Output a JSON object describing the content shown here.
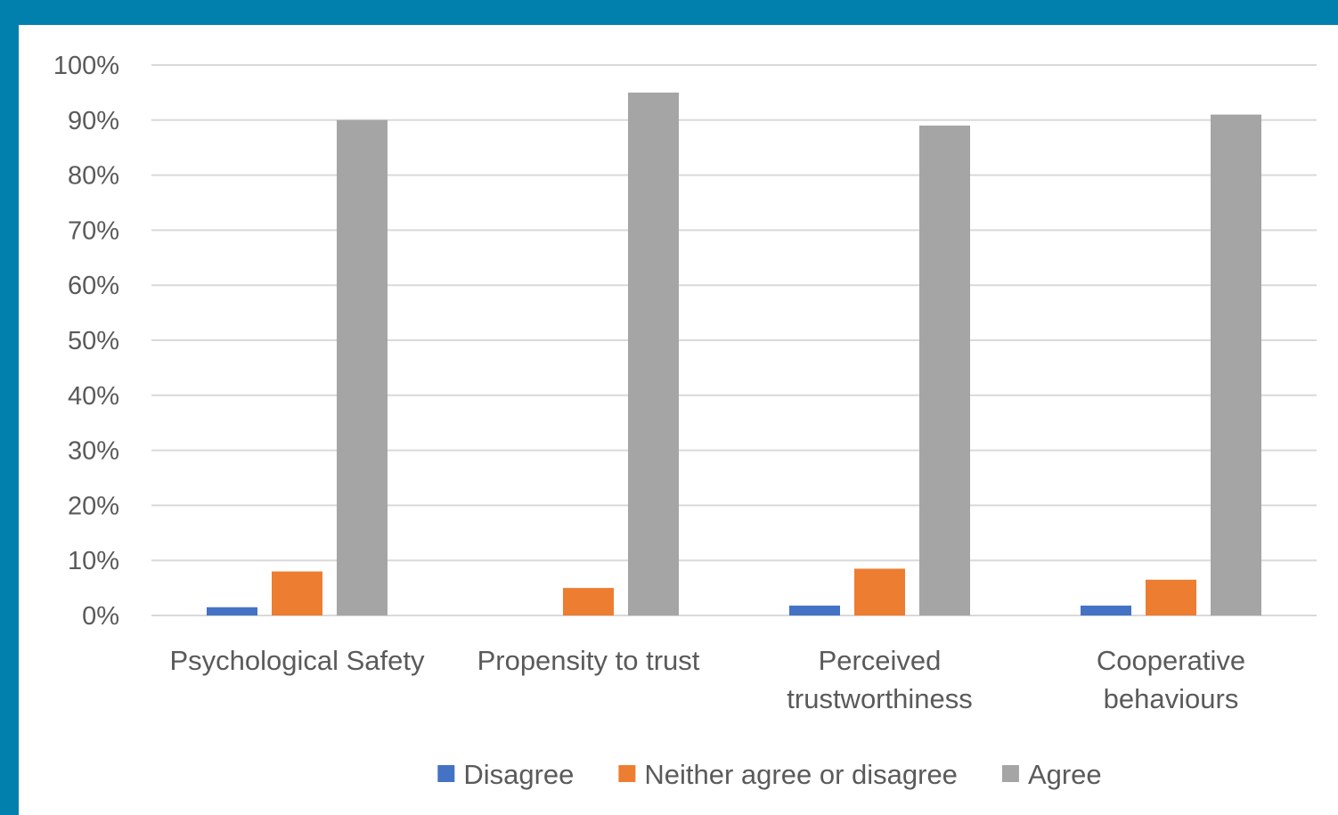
{
  "colors": {
    "frame": "#0280ad",
    "panel": "#ffffff",
    "gridline": "#d9d9d9",
    "text": "#5a5a5a"
  },
  "chart_data": {
    "type": "bar",
    "title": "",
    "xlabel": "",
    "ylabel": "",
    "categories": [
      [
        "Psychological Safety"
      ],
      [
        "Propensity to trust"
      ],
      [
        "Perceived",
        "trustworthiness"
      ],
      [
        "Cooperative",
        "behaviours"
      ]
    ],
    "series": [
      {
        "name": "Disagree",
        "color": "#4472c4",
        "values": [
          1.5,
          0,
          1.8,
          1.8
        ]
      },
      {
        "name": "Neither agree or disagree",
        "color": "#ed7d31",
        "values": [
          8,
          5,
          8.5,
          6.5
        ]
      },
      {
        "name": "Agree",
        "color": "#a5a5a5",
        "values": [
          90,
          95,
          89,
          91
        ]
      }
    ],
    "yticks": [
      "0%",
      "10%",
      "20%",
      "30%",
      "40%",
      "50%",
      "60%",
      "70%",
      "80%",
      "90%",
      "100%"
    ],
    "ylim": [
      0,
      100
    ],
    "grid": true,
    "legend_position": "bottom"
  }
}
